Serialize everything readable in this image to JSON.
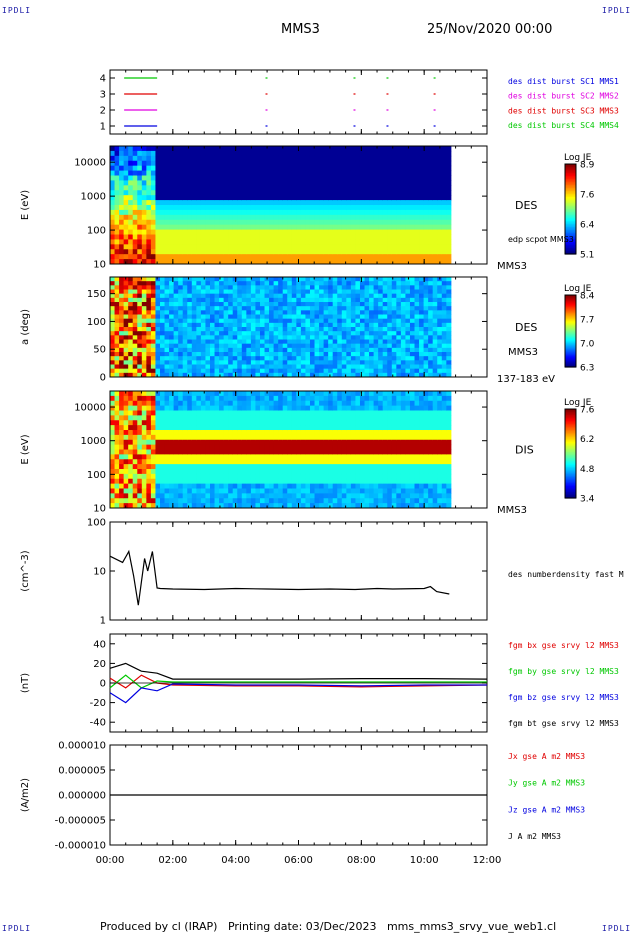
{
  "corner_labels": {
    "tl": "IPDLI",
    "tr": "IPDLI",
    "bl": "IPDLI",
    "br": "IPDLI"
  },
  "header": {
    "mission": "MMS3",
    "date": "25/Nov/2020 00:00"
  },
  "footer": {
    "text": "Produced by cl (IRAP)   Printing date: 03/Dec/2023   mms_mms3_srvy_vue_web1.cl"
  },
  "x_axis": {
    "ticks": [
      "00:00",
      "02:00",
      "04:00",
      "06:00",
      "08:00",
      "10:00",
      "12:00"
    ],
    "range_hours": [
      0,
      12
    ]
  },
  "colors": {
    "red": "#e00000",
    "green": "#00c800",
    "blue": "#0000e0",
    "magenta": "#e000e0",
    "black": "#000000"
  },
  "chart_data": [
    {
      "panel": "burst",
      "type": "line",
      "ylim": [
        0.5,
        4.5
      ],
      "yticks": [
        "1",
        "2",
        "3",
        "4"
      ],
      "legend": [
        {
          "text": "des dist burst SC1 MMS1",
          "color": "#0000e0"
        },
        {
          "text": "des dist burst SC2 MMS2",
          "color": "#e000e0"
        },
        {
          "text": "des dist burst SC3 MMS3",
          "color": "#e00000"
        },
        {
          "text": "des dist burst SC4 MMS4",
          "color": "#00c800"
        }
      ],
      "series": [
        {
          "level": 4,
          "color": "#00c800",
          "intervals": [
            [
              0.45,
              1.5
            ],
            [
              4.95,
              5.0
            ],
            [
              7.75,
              7.8
            ],
            [
              8.8,
              8.85
            ],
            [
              10.3,
              10.35
            ]
          ]
        },
        {
          "level": 3,
          "color": "#e00000",
          "intervals": [
            [
              0.45,
              1.5
            ],
            [
              4.95,
              5.0
            ],
            [
              7.75,
              7.8
            ],
            [
              8.8,
              8.85
            ],
            [
              10.3,
              10.35
            ]
          ]
        },
        {
          "level": 2,
          "color": "#e000e0",
          "intervals": [
            [
              0.45,
              1.5
            ],
            [
              4.95,
              5.0
            ],
            [
              7.75,
              7.8
            ],
            [
              8.8,
              8.85
            ],
            [
              10.3,
              10.35
            ]
          ]
        },
        {
          "level": 1,
          "color": "#0000e0",
          "intervals": [
            [
              0.45,
              1.5
            ],
            [
              4.95,
              5.0
            ],
            [
              7.75,
              7.8
            ],
            [
              8.8,
              8.85
            ],
            [
              10.3,
              10.35
            ]
          ]
        }
      ]
    },
    {
      "panel": "des_energy",
      "type": "heatmap",
      "ylabel": "E (eV)",
      "yscale": "log",
      "ylim": [
        10,
        30000
      ],
      "yticks": [
        "10",
        "100",
        "1000",
        "10000"
      ],
      "label": "DES",
      "sub_label": "edp scpot MMS3",
      "corner_label": "MMS3",
      "colorbar": {
        "title": "Log JE",
        "ticks": [
          "8.9",
          "7.6",
          "6.4",
          "5.1"
        ],
        "range": [
          5.1,
          8.9
        ]
      },
      "data_end_hour": 10.85
    },
    {
      "panel": "des_pitch",
      "type": "heatmap",
      "ylabel": "a (deg)",
      "ylim": [
        0,
        180
      ],
      "yticks": [
        "0",
        "50",
        "100",
        "150"
      ],
      "label": "DES",
      "sub_label": "MMS3",
      "corner_label": "137-183 eV",
      "colorbar": {
        "title": "Log JE",
        "ticks": [
          "8.4",
          "7.7",
          "7.0",
          "6.3"
        ],
        "range": [
          6.3,
          8.4
        ]
      },
      "data_end_hour": 10.85
    },
    {
      "panel": "dis_energy",
      "type": "heatmap",
      "ylabel": "E (eV)",
      "yscale": "log",
      "ylim": [
        10,
        30000
      ],
      "yticks": [
        "10",
        "100",
        "1000",
        "10000"
      ],
      "label": "DIS",
      "corner_label": "MMS3",
      "colorbar": {
        "title": "Log JE",
        "ticks": [
          "7.6",
          "6.2",
          "4.8",
          "3.4"
        ],
        "range": [
          3.4,
          7.6
        ]
      },
      "data_end_hour": 10.85
    },
    {
      "panel": "density",
      "type": "line",
      "ylabel": "(cm^-3)",
      "yscale": "log",
      "ylim": [
        1,
        100
      ],
      "yticks": [
        "1",
        "10",
        "100"
      ],
      "label": "des numberdensity fast M",
      "series": [
        {
          "color": "#000000",
          "x": [
            0.0,
            0.4,
            0.6,
            0.75,
            0.9,
            1.0,
            1.1,
            1.2,
            1.35,
            1.5,
            1.6,
            2.0,
            3.0,
            4.0,
            5.0,
            6.0,
            7.0,
            7.8,
            8.5,
            9.0,
            10.0,
            10.2,
            10.4,
            10.8
          ],
          "y": [
            20,
            15,
            25,
            8,
            2,
            6,
            18,
            10,
            25,
            4.5,
            4.4,
            4.3,
            4.2,
            4.4,
            4.3,
            4.2,
            4.3,
            4.2,
            4.4,
            4.3,
            4.4,
            4.8,
            3.8,
            3.4
          ]
        }
      ]
    },
    {
      "panel": "fgm",
      "type": "line",
      "ylabel": "(nT)",
      "ylim": [
        -50,
        50
      ],
      "yticks": [
        "-40",
        "-20",
        "0",
        "20",
        "40"
      ],
      "legend": [
        {
          "text": "fgm bx gse srvy l2 MMS3",
          "color": "#e00000"
        },
        {
          "text": "fgm by gse srvy l2 MMS3",
          "color": "#00c800"
        },
        {
          "text": "fgm bz gse srvy l2 MMS3",
          "color": "#0000e0"
        },
        {
          "text": "fgm bt gse srvy l2 MMS3",
          "color": "#000000"
        }
      ],
      "series": [
        {
          "name": "fgm bx gse srvy l2 MMS3",
          "color": "#e00000",
          "x": [
            0,
            0.5,
            1.0,
            1.5,
            2,
            4,
            6,
            8,
            10,
            12
          ],
          "y": [
            5,
            -5,
            8,
            0,
            -2,
            -3,
            -3,
            -4,
            -3,
            -2
          ]
        },
        {
          "name": "fgm by gse srvy l2 MMS3",
          "color": "#00c800",
          "x": [
            0,
            0.5,
            1.0,
            1.5,
            2,
            4,
            6,
            8,
            10,
            12
          ],
          "y": [
            -5,
            8,
            -5,
            2,
            1,
            1,
            1,
            1,
            1,
            1
          ]
        },
        {
          "name": "fgm bz gse srvy l2 MMS3",
          "color": "#0000e0",
          "x": [
            0,
            0.5,
            1.0,
            1.5,
            2,
            4,
            6,
            8,
            10,
            12
          ],
          "y": [
            -10,
            -20,
            -5,
            -8,
            -1,
            -2,
            -2,
            -3,
            -2,
            -2
          ]
        },
        {
          "name": "fgm bt gse srvy l2 MMS3",
          "color": "#000000",
          "x": [
            0,
            0.5,
            1.0,
            1.5,
            2,
            4,
            6,
            8,
            10,
            12
          ],
          "y": [
            15,
            20,
            12,
            10,
            4,
            4,
            4,
            4.5,
            4.5,
            4
          ]
        }
      ]
    },
    {
      "panel": "current",
      "type": "line",
      "ylabel": "(A/m2)",
      "ylim": [
        -1e-05,
        1e-05
      ],
      "yticks": [
        "-0.000010",
        "-0.000005",
        "0.000000",
        "0.000005",
        "0.000010"
      ],
      "legend": [
        {
          "text": "Jx gse A m2 MMS3",
          "color": "#e00000"
        },
        {
          "text": "Jy gse A m2 MMS3",
          "color": "#00c800"
        },
        {
          "text": "Jz gse A m2 MMS3",
          "color": "#0000e0"
        },
        {
          "text": "J A m2 MMS3",
          "color": "#000000"
        }
      ],
      "series": [
        {
          "name": "J A m2 MMS3",
          "color": "#000000",
          "x": [
            0,
            12
          ],
          "y": [
            0,
            0
          ]
        }
      ]
    }
  ]
}
